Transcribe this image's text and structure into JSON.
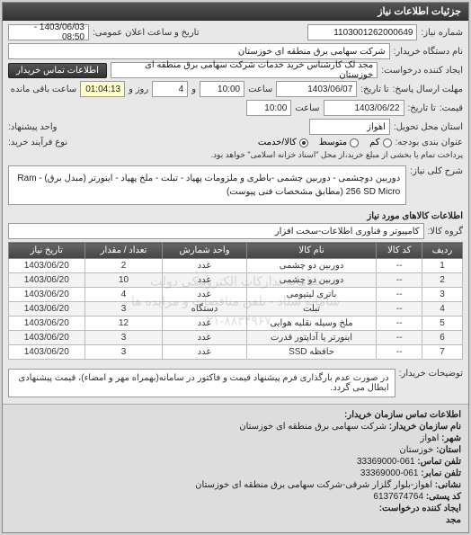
{
  "header": {
    "title": "جزئیات اطلاعات نیاز"
  },
  "form": {
    "request_no_label": "شماره نیاز:",
    "request_no": "1103001262000649",
    "announce_label": "تاریخ و ساعت اعلان عمومی:",
    "announce_val": "1403/06/03 - 08:50",
    "buyer_org_label": "نام دستگاه خریدار:",
    "buyer_org": "شرکت سهامی برق منطقه ای خوزستان",
    "requester_label": "ایجاد کننده درخواست:",
    "requester": "مجد لک کارشناس خرید خدمات شرکت سهامی برق منطقه ای خوزستان",
    "contact_btn": "اطلاعات تماس خریدار",
    "deadline_send_label": "مهلت ارسال پاسخ:",
    "until_label": "تا تاریخ:",
    "date1": "1403/06/07",
    "time_label": "ساعت",
    "time1": "10:00",
    "and_label": "و",
    "days_left": "4",
    "days_unit": "روز و",
    "countdown": "01:04:13",
    "remain_label": "ساعت باقی مانده",
    "price_label": "قیمت:",
    "price_until_label": "تا تاریخ:",
    "date2": "1403/06/22",
    "time2": "10:00",
    "delivery_place_label": "استان محل تحویل:",
    "delivery_place": "اهواز",
    "unit_label": "واحد پیشنهاد:",
    "budget_label": "عنوان بندی بودجه:",
    "budget_opts": {
      "low": "کم",
      "med": "متوسط",
      "goods": "کالا/خدمت"
    },
    "agent_label": "نوع فرآیند خرید:",
    "note1": "پرداخت تمام یا بخشی از مبلغ خرید،از محل \"اسناد خزانه اسلامی\" خواهد بود.",
    "desc_label": "شرح کلی نیاز:",
    "desc": "دوربین دوچشمی - دوربین چشمی -باطری و ملزومات پهپاد - تبلت - ملخ پهپاد - اینورتر (مبدل برق) - Ram 256 SD Micro (مطابق مشخصات فنی پیوست)",
    "goods_section": "اطلاعات کالاهای مورد نیاز",
    "group_label": "گروه کالا:",
    "group_val": "کامپیوتر و فناوری اطلاعات-سخت افزار"
  },
  "table": {
    "cols": [
      "ردیف",
      "کد کالا",
      "نام کالا",
      "واحد شمارش",
      "تعداد / مقدار",
      "تاریخ نیاز"
    ],
    "rows": [
      [
        "1",
        "--",
        "دوربین دو چشمی",
        "عدد",
        "2",
        "1403/06/20"
      ],
      [
        "2",
        "--",
        "دوربین دو چشمی",
        "عدد",
        "10",
        "1403/06/20"
      ],
      [
        "3",
        "--",
        "باتری لیتیومی",
        "عدد",
        "4",
        "1403/06/20"
      ],
      [
        "4",
        "--",
        "تبلت",
        "دستگاه",
        "3",
        "1403/06/20"
      ],
      [
        "5",
        "--",
        "ملخ وسیله نقلیه هوایی",
        "عدد",
        "12",
        "1403/06/20"
      ],
      [
        "6",
        "--",
        "اینورتر یا آداپتور قدرت",
        "عدد",
        "3",
        "1403/06/20"
      ],
      [
        "7",
        "--",
        "حافظه SSD",
        "عدد",
        "3",
        "1403/06/20"
      ]
    ],
    "watermark_l1": "سامانه تدارکات الکترونیکی دولت",
    "watermark_l2": "سامانه ستاد - تلفن مناقصات و مزایده ها",
    "watermark_l3": "۰۲۱-۸۸۳۴۹۶۷"
  },
  "buyer_note_label": "توضیحات خریدار:",
  "buyer_note": "در صورت عدم بارگذاری فرم پیشنهاد قیمت و فاکتور در سامانه(بهمراه مهر و امضاء)، قیمت پیشنهادی ابطال می گردد.",
  "contact": {
    "header": "اطلاعات تماس سازمان خریدار:",
    "org_label": "نام سازمان خریدار:",
    "org": "شرکت سهامی برق منطقه ای خوزستان",
    "city_label": "شهر:",
    "city": "اهواز",
    "prov_label": "استان:",
    "prov": "خوزستان",
    "tel_label": "تلفن تماس:",
    "tel": "061-33369000",
    "fax_label": "تلفن نمابر:",
    "fax": "061-33369000",
    "addr_label": "نشانی:",
    "addr": "اهواز-بلوار گلزار شرقی-شرکت سهامی برق منطقه ای خوزستان",
    "post_label": "کد پستی:",
    "post": "6137674764",
    "creator_label": "ایجاد کننده درخواست:",
    "creator": "مجد"
  }
}
